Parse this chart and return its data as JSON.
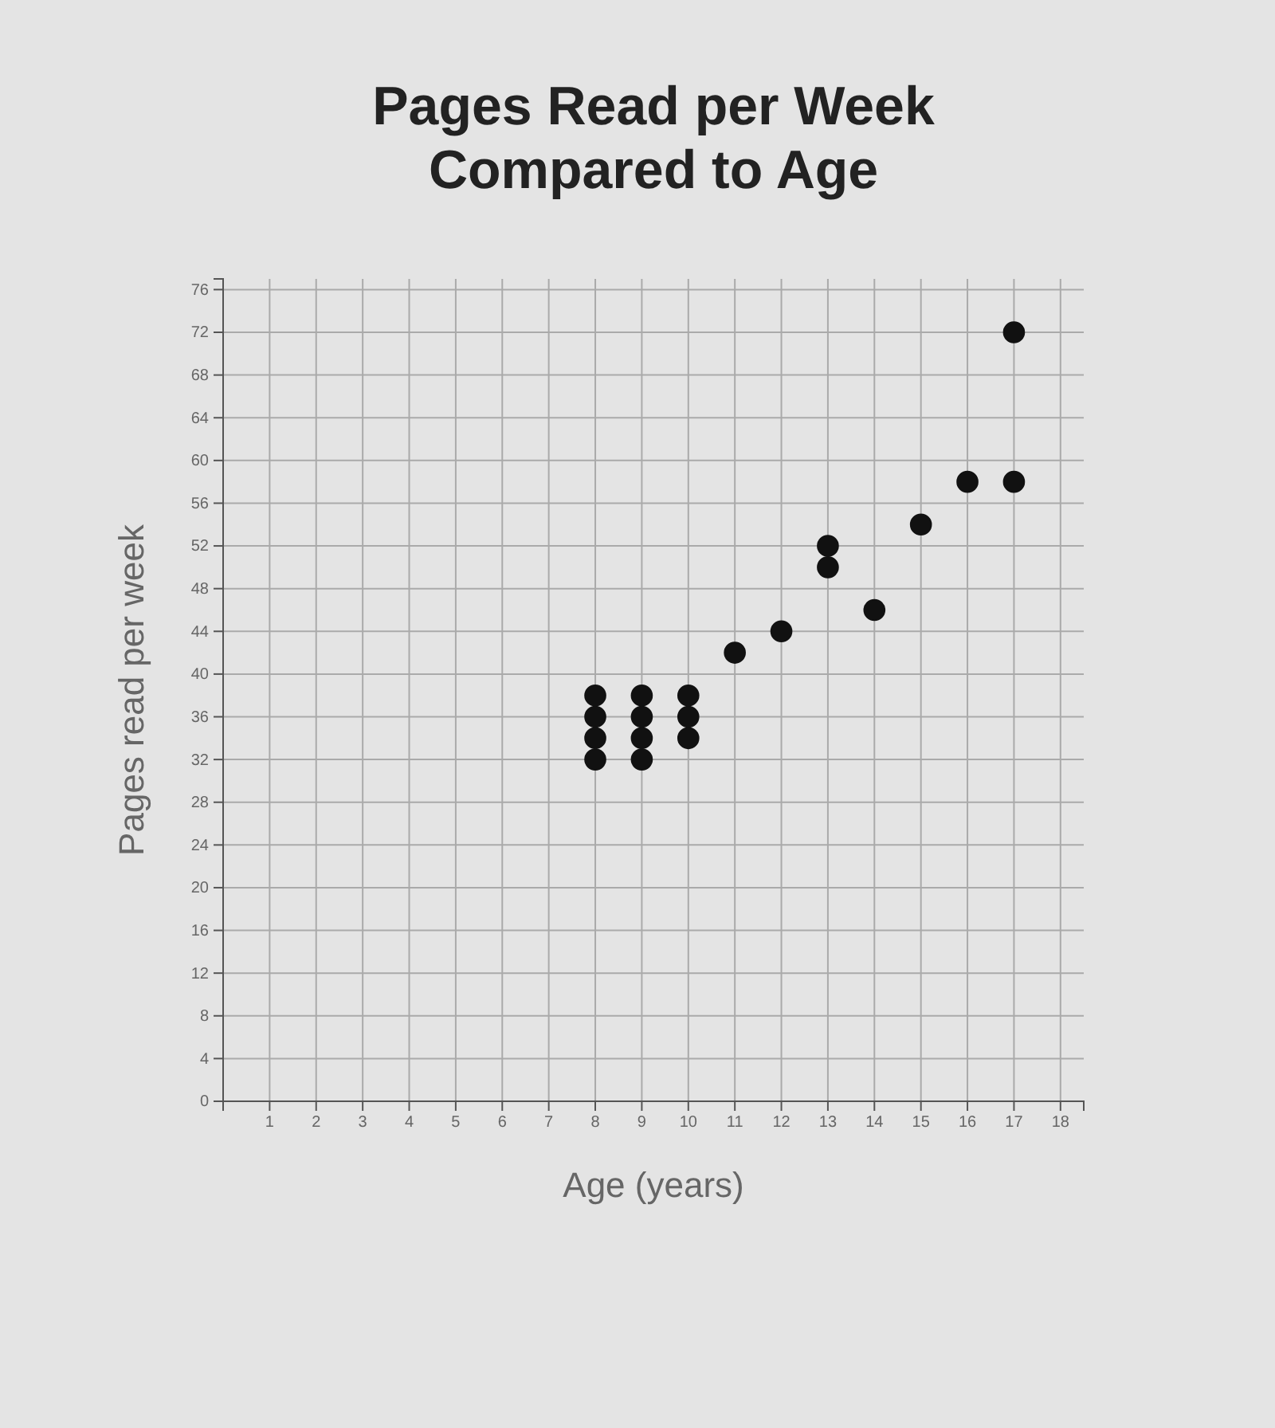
{
  "chart_data": {
    "type": "scatter",
    "title": "Pages Read per Week\nCompared to Age",
    "xlabel": "Age (years)",
    "ylabel": "Pages read per week",
    "x": [
      8,
      8,
      8,
      8,
      9,
      9,
      9,
      9,
      10,
      10,
      10,
      11,
      12,
      13,
      13,
      14,
      15,
      16,
      17,
      17
    ],
    "values": [
      32,
      34,
      36,
      38,
      32,
      34,
      36,
      38,
      34,
      36,
      38,
      42,
      44,
      50,
      52,
      46,
      54,
      58,
      58,
      72
    ],
    "color": "#111111",
    "marker": "circle",
    "xlim": [
      0,
      18.5
    ],
    "xticks": [
      1,
      2,
      3,
      4,
      5,
      6,
      7,
      8,
      9,
      10,
      11,
      12,
      13,
      14,
      15,
      16,
      17,
      18
    ],
    "ylim": [
      0,
      77
    ],
    "yticks": [
      0,
      4,
      8,
      12,
      16,
      20,
      24,
      28,
      32,
      36,
      40,
      44,
      48,
      52,
      56,
      60,
      64,
      68,
      72,
      76
    ],
    "grid": true
  }
}
